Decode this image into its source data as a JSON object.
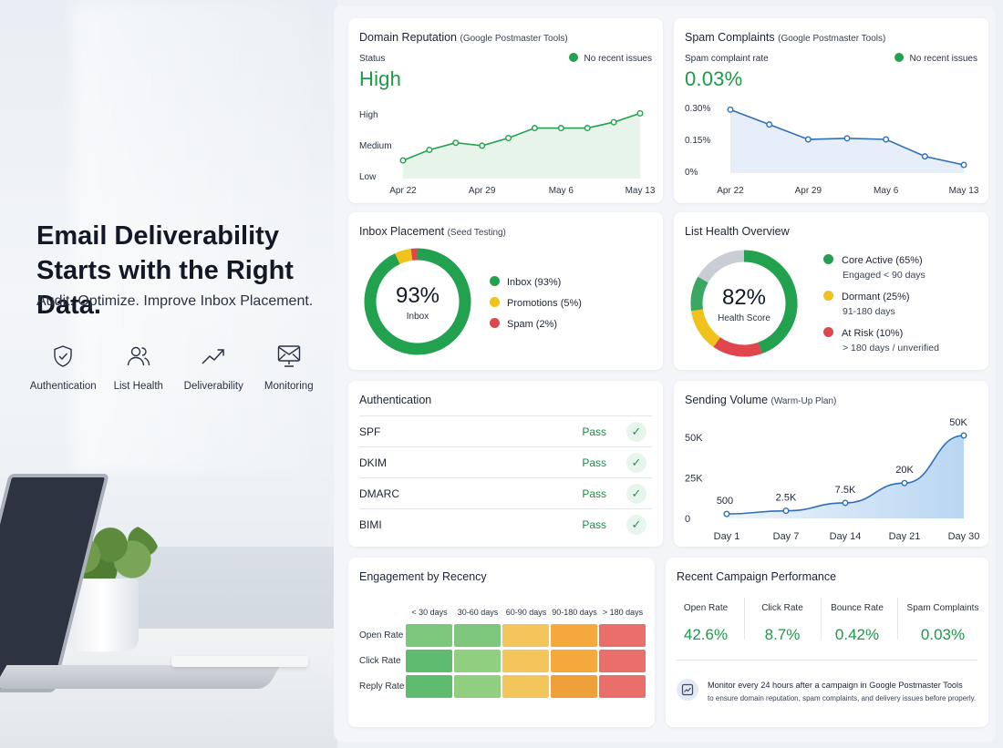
{
  "hero": {
    "title_line1": "Email Deliverability",
    "title_line2": "Starts with the Right Data.",
    "subtitle": "Audit. Optimize. Improve Inbox Placement.",
    "features": [
      {
        "label": "Authentication",
        "icon": "shield-check-icon"
      },
      {
        "label": "List Health",
        "icon": "users-icon"
      },
      {
        "label": "Deliverability",
        "icon": "trend-up-icon"
      },
      {
        "label": "Monitoring",
        "icon": "monitor-mail-icon"
      }
    ]
  },
  "domain_reputation": {
    "title": "Domain Reputation",
    "source": "(Google Postmaster Tools)",
    "status_label": "Status",
    "status_value": "High",
    "indicator": "No recent issues",
    "chart_data": {
      "type": "line",
      "x": [
        "Apr 22",
        "",
        "",
        "Apr 29",
        "",
        "",
        "May 6",
        "",
        "",
        "May 13"
      ],
      "xticks": [
        "Apr 22",
        "Apr 29",
        "May 6",
        "May 13"
      ],
      "ytick_labels": [
        "High",
        "Medium",
        "Low"
      ],
      "values": [
        0.2,
        0.38,
        0.5,
        0.45,
        0.58,
        0.75,
        0.75,
        0.75,
        0.85,
        1.0
      ],
      "ylim": [
        -0.3,
        1.15
      ]
    }
  },
  "spam_complaints": {
    "title": "Spam Complaints",
    "source": "(Google Postmaster Tools)",
    "rate_label": "Spam complaint rate",
    "rate_value": "0.03%",
    "indicator": "No recent issues",
    "chart_data": {
      "type": "area",
      "x": [
        "Apr 22",
        "",
        "Apr 29",
        "",
        "May 6",
        "",
        "May 13"
      ],
      "xticks": [
        "Apr 22",
        "Apr 29",
        "May 6",
        "May 13"
      ],
      "yticks": [
        "0.30%",
        "0.15%",
        "0%"
      ],
      "values": [
        0.29,
        0.22,
        0.15,
        0.155,
        0.15,
        0.07,
        0.03
      ],
      "ylim": [
        0,
        0.3
      ]
    }
  },
  "inbox_placement": {
    "title": "Inbox Placement",
    "source": "(Seed Testing)",
    "center_value": "93%",
    "center_label": "Inbox",
    "chart_data": {
      "type": "pie",
      "slices": [
        {
          "label": "Inbox (93%)",
          "value": 93,
          "color": "#22a14f"
        },
        {
          "label": "Promotions (5%)",
          "value": 5,
          "color": "#f1c21b"
        },
        {
          "label": "Spam (2%)",
          "value": 2,
          "color": "#e0474c"
        }
      ]
    }
  },
  "list_health": {
    "title": "List Health Overview",
    "center_value": "82%",
    "center_label": "Health Score",
    "chart_data": {
      "type": "pie",
      "slices": [
        {
          "label": "Core Active (65%)",
          "sub": "Engaged < 90 days",
          "value": 65,
          "color": "#22a14f"
        },
        {
          "label": "Dormant (25%)",
          "sub": "91-180 days",
          "value": 25,
          "color": "#f1c21b"
        },
        {
          "label": "At Risk (10%)",
          "sub": "> 180 days / unverified",
          "value": 10,
          "color": "#e0474c"
        }
      ]
    }
  },
  "authentication": {
    "title": "Authentication",
    "rows": [
      {
        "name": "SPF",
        "status": "Pass"
      },
      {
        "name": "DKIM",
        "status": "Pass"
      },
      {
        "name": "DMARC",
        "status": "Pass"
      },
      {
        "name": "BIMI",
        "status": "Pass"
      }
    ]
  },
  "sending_volume": {
    "title": "Sending Volume",
    "subtitle": "(Warm-Up Plan)",
    "chart_data": {
      "type": "area",
      "x": [
        "Day 1",
        "Day 7",
        "Day 14",
        "Day 21",
        "Day 30"
      ],
      "values": [
        500,
        2500,
        7500,
        20000,
        50000
      ],
      "data_labels": [
        "500",
        "2.5K",
        "7.5K",
        "20K",
        "50K"
      ],
      "yticks": [
        "50K",
        "25K",
        "0"
      ],
      "ylim": [
        0,
        50000
      ]
    }
  },
  "engagement": {
    "title": "Engagement by Recency",
    "chart_data": {
      "type": "heatmap",
      "columns": [
        "< 30 days",
        "30-60 days",
        "60-90 days",
        "90-180 days",
        "> 180 days"
      ],
      "rows": [
        "Open Rate",
        "Click Rate",
        "Reply Rate"
      ],
      "colors": [
        [
          "#7cc77b",
          "#7cc77b",
          "#f2c65b",
          "#f4a93a",
          "#ea6e6a"
        ],
        [
          "#5fbb6e",
          "#8fcf7f",
          "#f2c65b",
          "#f4a93a",
          "#ea6e6a"
        ],
        [
          "#5fbb6e",
          "#8fcf7f",
          "#f2c65b",
          "#f0a03a",
          "#ea6e6a"
        ]
      ]
    }
  },
  "recent_campaign": {
    "title": "Recent Campaign Performance",
    "metrics": [
      {
        "label": "Open Rate",
        "value": "42.6%"
      },
      {
        "label": "Click Rate",
        "value": "8.7%"
      },
      {
        "label": "Bounce Rate",
        "value": "0.42%"
      },
      {
        "label": "Spam Complaints",
        "value": "0.03%"
      }
    ],
    "note_title": "Monitor every 24 hours after a campaign in Google Postmaster Tools",
    "note_body": "to ensure domain reputation, spam complaints, and delivery issues before properly."
  },
  "colors": {
    "green": "#22a14f",
    "yellow": "#f1c21b",
    "red": "#e0474c",
    "blue": "#2f6fb8",
    "grey": "#c9ced6"
  }
}
